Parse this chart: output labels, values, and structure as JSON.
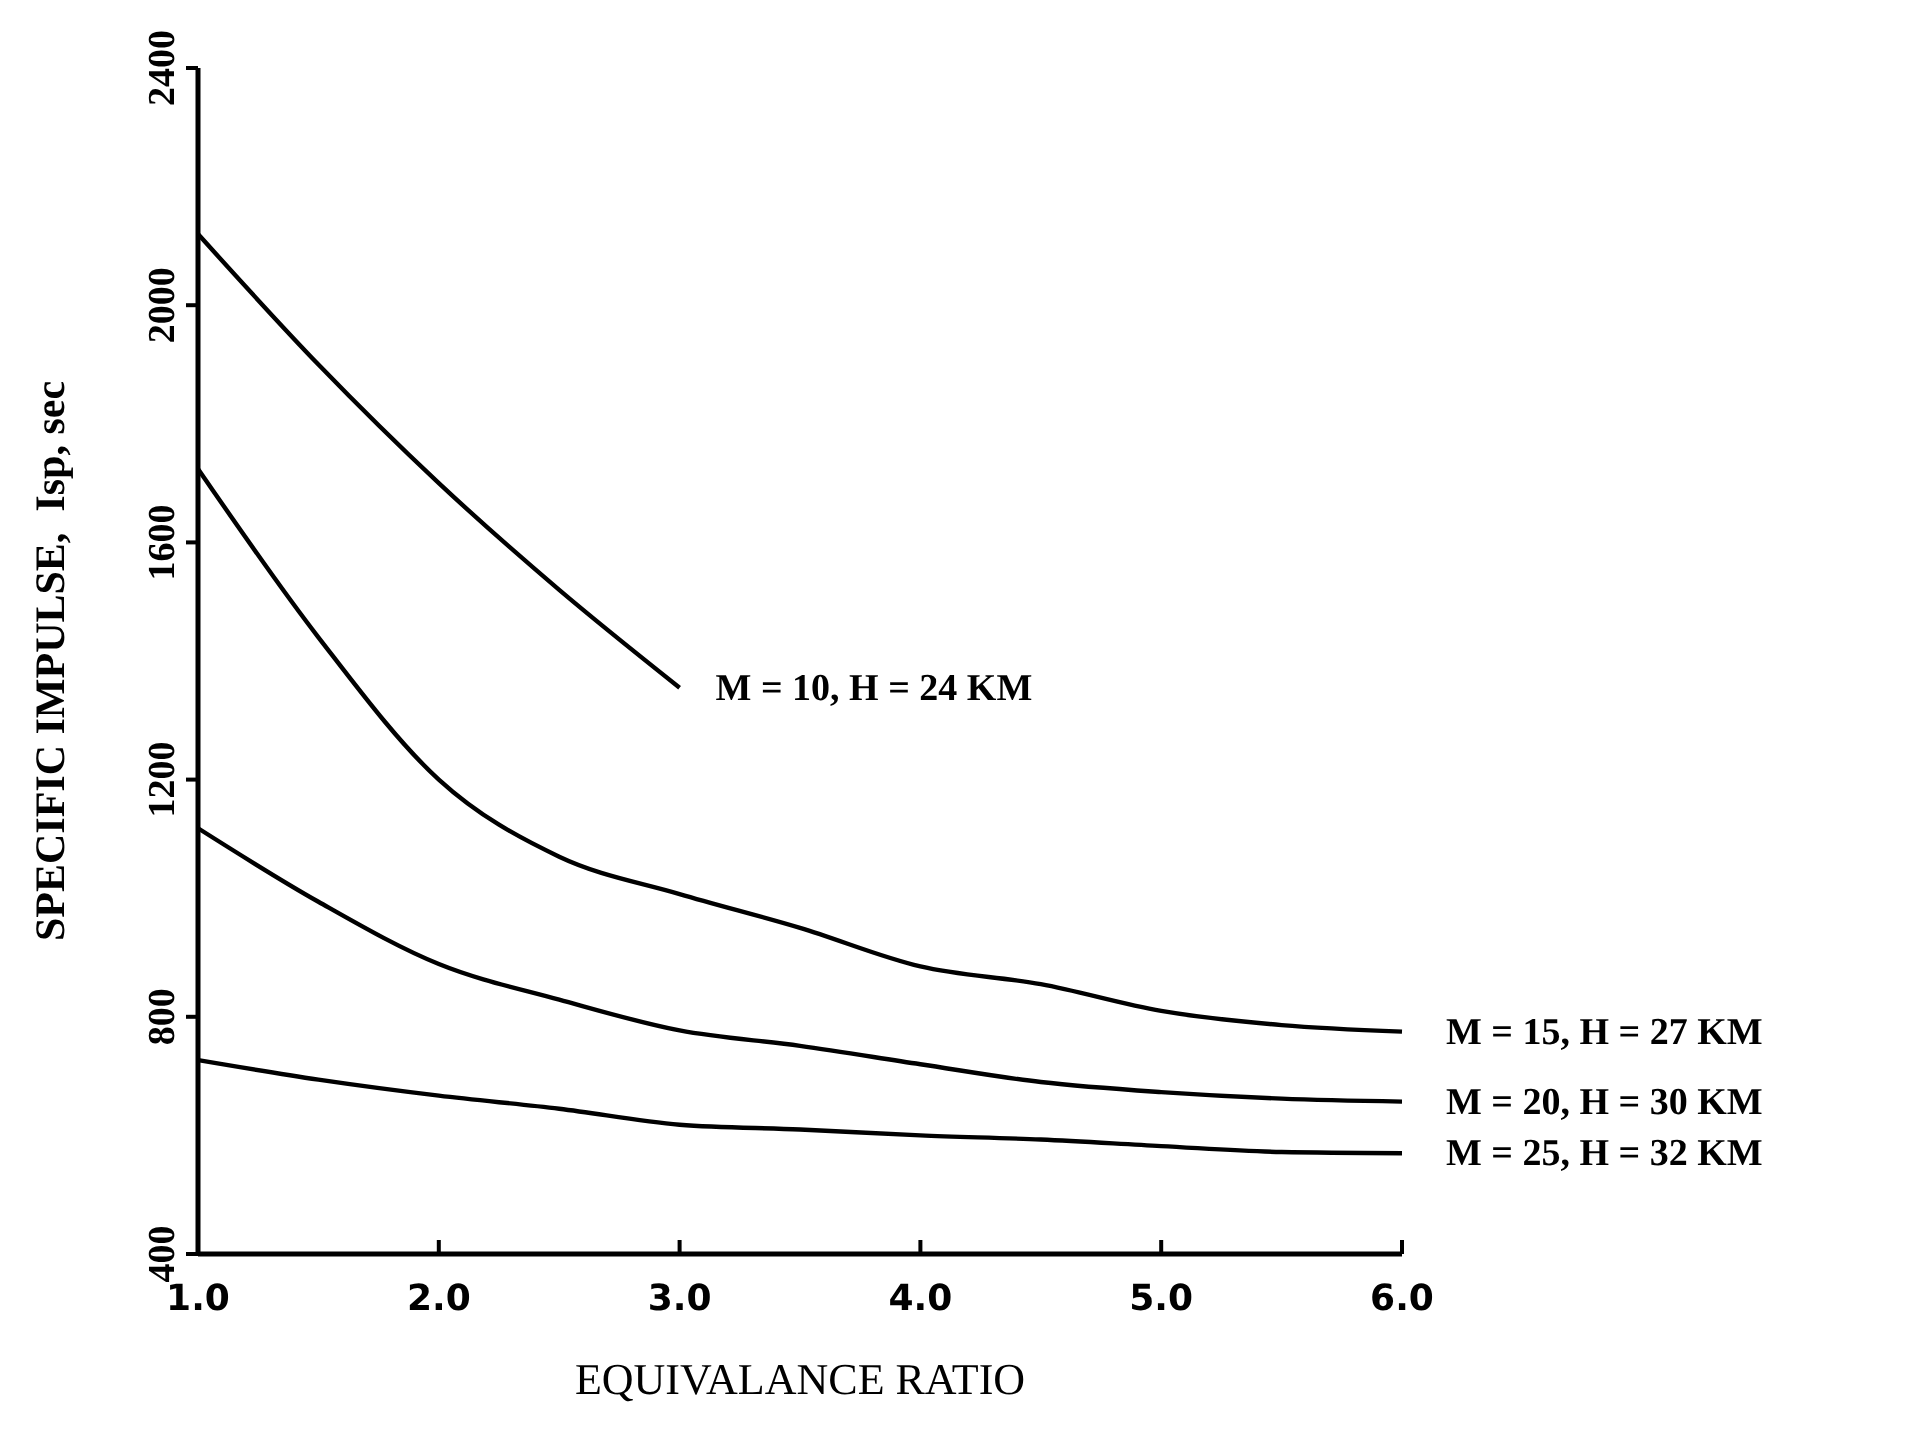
{
  "chart_data": {
    "type": "line",
    "xlabel": "EQUIVALANCE RATIO",
    "ylabel": "SPECIFIC IMPULSE,  Isp, sec",
    "xlim": [
      1,
      6
    ],
    "xticks": [
      {
        "value": 1,
        "label": "1.0"
      },
      {
        "value": 2,
        "label": "2.0"
      },
      {
        "value": 3,
        "label": "3.0"
      },
      {
        "value": 4,
        "label": "4.0"
      },
      {
        "value": 5,
        "label": "5.0"
      },
      {
        "value": 6,
        "label": "6.0"
      }
    ],
    "ylim": [
      400,
      2400
    ],
    "yticks": [
      400,
      800,
      1200,
      1600,
      2000,
      2400
    ],
    "grid": false,
    "legend": false,
    "marker": "none",
    "line_style": "solid",
    "series": [
      {
        "name": "M = 10, H = 24 KM",
        "color": "#000000",
        "x": [
          1,
          1.5,
          2,
          2.5,
          3
        ],
        "values": [
          2120,
          1900,
          1700,
          1520,
          1355
        ]
      },
      {
        "name": "M = 15, H = 27 KM",
        "color": "#000000",
        "x": [
          1,
          1.5,
          2,
          2.5,
          3,
          3.5,
          4,
          4.5,
          5,
          5.5,
          6
        ],
        "values": [
          1724,
          1440,
          1200,
          1070,
          1007,
          950,
          885,
          855,
          810,
          786,
          775
        ]
      },
      {
        "name": "M = 20, H = 30 KM",
        "color": "#000000",
        "x": [
          1,
          1.5,
          2,
          2.5,
          3,
          3.5,
          4,
          4.5,
          5,
          5.5,
          6
        ],
        "values": [
          1118,
          994,
          889,
          829,
          777,
          751,
          720,
          690,
          673,
          662,
          657
        ]
      },
      {
        "name": "M = 25, H = 32 KM",
        "color": "#000000",
        "x": [
          1,
          1.5,
          2,
          2.5,
          3,
          3.5,
          4,
          4.5,
          5,
          5.5,
          6
        ],
        "values": [
          727,
          694,
          667,
          645,
          618,
          610,
          600,
          593,
          582,
          572,
          570
        ]
      }
    ]
  }
}
